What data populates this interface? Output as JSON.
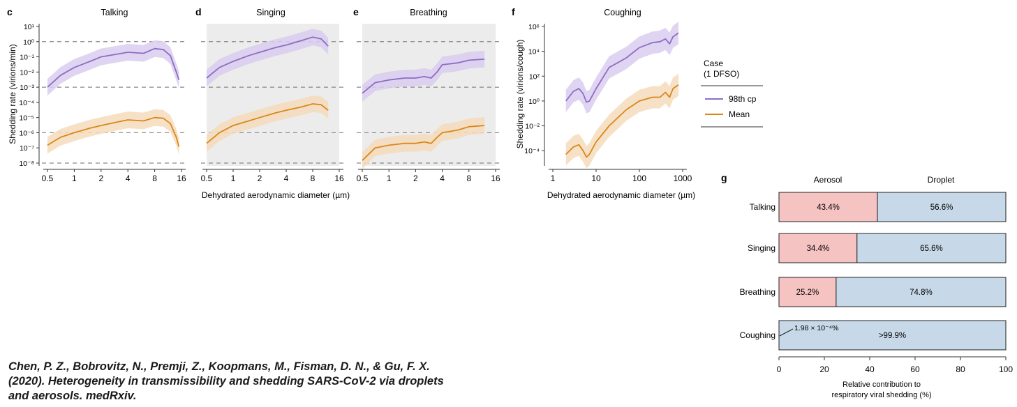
{
  "figure": {
    "shared_xlabel_cde": "Dehydrated aerodynamic diameter (µm)",
    "xlabel_f": "Dehydrated aerodynamic diameter (µm)",
    "ylabel_cde": "Shedding rate (virions/min)",
    "ylabel_f": "Shedding rate (virions/cough)"
  },
  "legend": {
    "title_line1": "Case",
    "title_line2": "(1 DFSO)",
    "items": [
      {
        "label": "98th cp",
        "color": "#8e6cc4"
      },
      {
        "label": "Mean",
        "color": "#d9871a"
      }
    ]
  },
  "colors": {
    "purple": "#8e6cc4",
    "purple_band": "#d9cdef",
    "orange": "#d9871a",
    "orange_band": "#f6dcbc",
    "shade": "#ececec",
    "aerosol": "#f6c3c3",
    "droplet": "#c7d8e8"
  },
  "citation": {
    "line1": "Chen, P. Z., Bobrovitz, N., Premji, Z., Koopmans, M., Fisman, D. N., & Gu, F. X.",
    "line2": "(2020). Heterogeneity in transmissibility and shedding SARS-CoV-2 via droplets",
    "line3": "and aerosols. medRxiv."
  },
  "chart_data": [
    {
      "panel": "c",
      "type": "line",
      "title": "Talking",
      "xscale": "log",
      "xlim": [
        0.5,
        16
      ],
      "yscale": "log",
      "ylim": [
        1e-08,
        10
      ],
      "xticks": [
        "0.5",
        "1",
        "2",
        "4",
        "8",
        "16"
      ],
      "yticks": [
        "10¹",
        "10⁰",
        "10⁻¹",
        "10⁻²",
        "10⁻³",
        "10⁻⁴",
        "10⁻⁵",
        "10⁻⁶",
        "10⁻⁷",
        "10⁻⁸"
      ],
      "hlines": [
        1,
        0.001,
        1e-06,
        1e-08
      ],
      "shaded": false,
      "series": [
        {
          "name": "98th cp",
          "x": [
            0.5,
            0.7,
            1,
            1.5,
            2,
            3,
            4,
            6,
            8,
            10,
            12,
            14,
            15
          ],
          "y": [
            0.001,
            0.006,
            0.02,
            0.05,
            0.1,
            0.15,
            0.2,
            0.17,
            0.35,
            0.3,
            0.12,
            0.01,
            0.003
          ]
        },
        {
          "name": "Mean",
          "x": [
            0.5,
            0.7,
            1,
            1.5,
            2,
            3,
            4,
            6,
            8,
            10,
            12,
            14,
            15
          ],
          "y": [
            1.5e-07,
            5e-07,
            1e-06,
            2e-06,
            3e-06,
            5e-06,
            7e-06,
            6e-06,
            1e-05,
            9e-06,
            4e-06,
            5e-07,
            1.2e-07
          ]
        }
      ]
    },
    {
      "panel": "d",
      "type": "line",
      "title": "Singing",
      "xscale": "log",
      "xlim": [
        0.5,
        16
      ],
      "yscale": "log",
      "ylim": [
        1e-08,
        10
      ],
      "xticks": [
        "0.5",
        "1",
        "2",
        "4",
        "8",
        "16"
      ],
      "hlines": [
        1,
        0.001,
        1e-06,
        1e-08
      ],
      "shaded": true,
      "series": [
        {
          "name": "98th cp",
          "x": [
            0.5,
            0.7,
            1,
            1.5,
            2,
            3,
            4,
            6,
            8,
            10,
            12
          ],
          "y": [
            0.004,
            0.02,
            0.05,
            0.12,
            0.2,
            0.4,
            0.6,
            1.2,
            2,
            1.5,
            0.5
          ]
        },
        {
          "name": "Mean",
          "x": [
            0.5,
            0.7,
            1,
            1.5,
            2,
            3,
            4,
            6,
            8,
            10,
            12
          ],
          "y": [
            2e-07,
            1e-06,
            3e-06,
            6e-06,
            1e-05,
            2e-05,
            3e-05,
            5e-05,
            8e-05,
            7e-05,
            3e-05
          ]
        }
      ]
    },
    {
      "panel": "e",
      "type": "line",
      "title": "Breathing",
      "xscale": "log",
      "xlim": [
        0.5,
        16
      ],
      "yscale": "log",
      "ylim": [
        1e-08,
        10
      ],
      "xticks": [
        "0.5",
        "1",
        "2",
        "4",
        "8",
        "16"
      ],
      "hlines": [
        1,
        0.001,
        1e-06,
        1e-08
      ],
      "shaded": true,
      "series": [
        {
          "name": "98th cp",
          "x": [
            0.5,
            0.7,
            1,
            1.5,
            2,
            2.5,
            3,
            3.5,
            4,
            6,
            8,
            12
          ],
          "y": [
            0.0004,
            0.002,
            0.003,
            0.004,
            0.004,
            0.005,
            0.004,
            0.01,
            0.03,
            0.04,
            0.06,
            0.07
          ]
        },
        {
          "name": "Mean",
          "x": [
            0.5,
            0.7,
            1,
            1.5,
            2,
            2.5,
            3,
            3.5,
            4,
            6,
            8,
            12
          ],
          "y": [
            1.5e-08,
            1e-07,
            1.5e-07,
            2e-07,
            2e-07,
            2.5e-07,
            2e-07,
            5e-07,
            1e-06,
            1.5e-06,
            2.5e-06,
            3e-06
          ]
        }
      ]
    },
    {
      "panel": "f",
      "type": "line",
      "title": "Coughing",
      "xscale": "log",
      "xlim": [
        1,
        1000
      ],
      "yscale": "log",
      "ylim": [
        1e-05,
        1000000.0
      ],
      "xticks": [
        "1",
        "10",
        "100",
        "1000"
      ],
      "yticks": [
        "10⁶",
        "10⁴",
        "10²",
        "10⁰",
        "10⁻²",
        "10⁻⁴"
      ],
      "shaded": false,
      "series": [
        {
          "name": "98th cp",
          "x": [
            2,
            3,
            4,
            5,
            6,
            7,
            10,
            20,
            50,
            100,
            200,
            300,
            400,
            500,
            600,
            800
          ],
          "y": [
            1,
            6,
            10,
            4,
            0.8,
            1,
            10,
            500,
            3000,
            20000,
            50000,
            60000,
            100000,
            40000,
            150000,
            300000
          ]
        },
        {
          "name": "Mean",
          "x": [
            2,
            3,
            4,
            5,
            6,
            7,
            10,
            20,
            50,
            100,
            200,
            300,
            400,
            500,
            600,
            800
          ],
          "y": [
            5e-05,
            0.0002,
            0.0003,
            0.0001,
            3e-05,
            5e-05,
            0.0005,
            0.01,
            0.2,
            1,
            2,
            2,
            5,
            2,
            10,
            20
          ]
        }
      ]
    },
    {
      "panel": "g",
      "type": "bar",
      "orientation": "horizontal",
      "stacked": true,
      "categories": [
        "Talking",
        "Singing",
        "Breathing",
        "Coughing"
      ],
      "column_headers": [
        "Aerosol",
        "Droplet"
      ],
      "series": [
        {
          "name": "Aerosol",
          "values": [
            43.4,
            34.4,
            25.2,
            0.000198
          ],
          "labels": [
            "43.4%",
            "34.4%",
            "25.2%",
            "1.98 × 10⁻⁴%"
          ]
        },
        {
          "name": "Droplet",
          "values": [
            56.6,
            65.6,
            74.8,
            99.9998
          ],
          "labels": [
            "56.6%",
            "65.6%",
            "74.8%",
            ">99.9%"
          ]
        }
      ],
      "xticks": [
        "0",
        "20",
        "40",
        "60",
        "80",
        "100"
      ],
      "xlim": [
        0,
        100
      ],
      "xlabel_line1": "Relative contribution to",
      "xlabel_line2": "respiratory viral shedding (%)"
    }
  ]
}
